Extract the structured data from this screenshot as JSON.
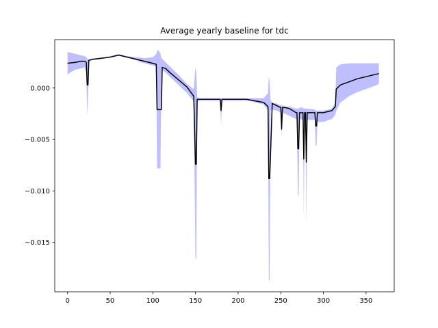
{
  "chart_data": {
    "type": "line",
    "title": "Average yearly baseline for tdc",
    "xlabel": "",
    "ylabel": "",
    "xlim": [
      -15,
      383
    ],
    "ylim": [
      -0.0198,
      0.0047
    ],
    "x_ticks": [
      0,
      50,
      100,
      150,
      200,
      250,
      300,
      350
    ],
    "x_tick_labels": [
      "0",
      "50",
      "100",
      "150",
      "200",
      "250",
      "300",
      "350"
    ],
    "y_ticks": [
      0.0,
      -0.005,
      -0.01,
      -0.015
    ],
    "y_tick_labels": [
      "0.000",
      "−0.005",
      "−0.010",
      "−0.015"
    ],
    "grid": false,
    "colors": {
      "line": "#000000",
      "band": "#aaaaff"
    },
    "series": [
      {
        "kind": "line",
        "x": [
          0,
          10,
          15,
          20,
          22,
          23,
          24,
          25,
          30,
          40,
          50,
          60,
          70,
          80,
          90,
          100,
          104,
          105,
          110,
          111,
          115,
          120,
          130,
          140,
          148,
          150,
          151,
          152,
          155,
          170,
          179,
          180,
          181,
          190,
          210,
          230,
          235,
          236,
          237,
          240,
          245,
          250,
          251,
          252,
          255,
          260,
          268,
          269,
          270,
          271,
          272,
          276,
          277,
          278,
          279,
          280,
          281,
          290,
          291,
          292,
          293,
          294,
          300,
          310,
          314,
          315,
          320,
          330,
          340,
          350,
          360,
          365
        ],
        "y": [
          0.0024,
          0.0025,
          0.0026,
          0.0026,
          0.0025,
          0.0003,
          0.0003,
          0.0027,
          0.0028,
          0.0029,
          0.003,
          0.0032,
          0.003,
          0.0028,
          0.0026,
          0.0024,
          0.0023,
          -0.0021,
          -0.0021,
          0.002,
          0.0019,
          0.0015,
          0.0008,
          0.0001,
          -0.0008,
          -0.0074,
          -0.0074,
          -0.0011,
          -0.0011,
          -0.0011,
          -0.0011,
          -0.0022,
          -0.0011,
          -0.0011,
          -0.0011,
          -0.0014,
          -0.0018,
          -0.0088,
          -0.0088,
          -0.0015,
          -0.0017,
          -0.0019,
          -0.004,
          -0.0019,
          -0.0019,
          -0.002,
          -0.0024,
          -0.0024,
          -0.0059,
          -0.0059,
          -0.0024,
          -0.0024,
          -0.0069,
          -0.0024,
          -0.0024,
          -0.0072,
          -0.0024,
          -0.0024,
          -0.0037,
          -0.0037,
          -0.0024,
          -0.0024,
          -0.0024,
          -0.0022,
          -0.0018,
          -0.0001,
          0.0003,
          0.0006,
          0.0009,
          0.0011,
          0.0013,
          0.0014
        ]
      },
      {
        "kind": "band",
        "x": [
          0,
          5,
          10,
          15,
          20,
          22,
          23,
          24,
          25,
          30,
          40,
          50,
          60,
          70,
          80,
          90,
          100,
          104,
          105,
          106,
          108,
          109,
          110,
          115,
          120,
          130,
          140,
          148,
          150,
          151,
          152,
          155,
          170,
          179,
          180,
          181,
          190,
          210,
          230,
          235,
          236,
          237,
          238,
          240,
          245,
          250,
          251,
          252,
          255,
          260,
          268,
          269,
          270,
          271,
          272,
          276,
          277,
          278,
          279,
          280,
          281,
          290,
          291,
          292,
          293,
          294,
          300,
          310,
          314,
          315,
          320,
          330,
          340,
          350,
          360,
          365
        ],
        "upper": [
          0.0035,
          0.0034,
          0.0033,
          0.0032,
          0.0031,
          0.003,
          0.0029,
          0.0028,
          0.0027,
          0.0028,
          0.0029,
          0.0031,
          0.0033,
          0.0031,
          0.003,
          0.0029,
          0.003,
          0.0033,
          0.0036,
          0.0037,
          0.0035,
          0.0033,
          0.0029,
          0.0025,
          0.0021,
          0.0013,
          0.0004,
          -0.0001,
          0.002,
          0.0015,
          -0.0009,
          -0.001,
          -0.001,
          -0.001,
          -0.001,
          -0.001,
          -0.001,
          -0.001,
          -0.001,
          -0.0005,
          0.0012,
          0.0005,
          -0.0012,
          -0.0014,
          -0.0015,
          -0.0017,
          -0.0017,
          -0.0017,
          -0.0018,
          -0.0018,
          -0.002,
          -0.002,
          -0.002,
          -0.002,
          -0.0019,
          -0.0019,
          -0.002,
          -0.002,
          -0.002,
          -0.002,
          -0.002,
          -0.0021,
          -0.0022,
          -0.0022,
          -0.0022,
          -0.0022,
          -0.0022,
          -0.002,
          -0.0015,
          0.002,
          0.0023,
          0.0024,
          0.0024,
          0.0024,
          0.0024,
          0.0024
        ],
        "lower": [
          0.0013,
          0.0016,
          0.0018,
          0.0019,
          0.002,
          0.0015,
          -0.0027,
          -0.001,
          0.0026,
          0.0027,
          0.0028,
          0.003,
          0.0032,
          0.003,
          0.0027,
          0.0024,
          0.0022,
          0.0021,
          -0.0078,
          -0.0078,
          -0.0078,
          -0.0078,
          0.0018,
          0.0015,
          0.0011,
          0.0003,
          -0.0005,
          -0.0013,
          -0.0166,
          -0.0166,
          -0.0013,
          -0.0012,
          -0.0012,
          -0.0012,
          -0.0037,
          -0.0012,
          -0.0012,
          -0.0012,
          -0.0016,
          -0.0022,
          -0.0187,
          -0.0187,
          -0.0022,
          -0.0021,
          -0.0022,
          -0.0024,
          -0.0048,
          -0.0024,
          -0.0025,
          -0.0027,
          -0.003,
          -0.003,
          -0.0104,
          -0.0104,
          -0.003,
          -0.0031,
          -0.0125,
          -0.0031,
          -0.0031,
          -0.0135,
          -0.0031,
          -0.0031,
          -0.0056,
          -0.0056,
          -0.0033,
          -0.0033,
          -0.0033,
          -0.003,
          -0.0026,
          -0.0022,
          -0.0014,
          -0.0008,
          -0.0004,
          -0.0001,
          0.0002,
          0.0004
        ]
      }
    ]
  }
}
